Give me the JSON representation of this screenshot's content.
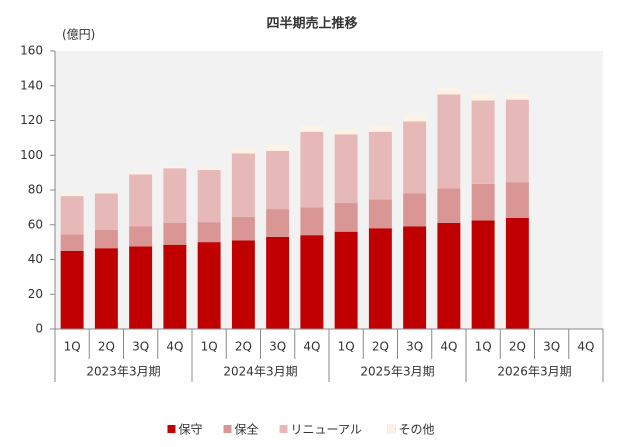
{
  "chart_data": {
    "type": "stacked-bar",
    "title": "四半期売上推移",
    "y_unit": "(億円)",
    "categories": [
      "1Q",
      "2Q",
      "3Q",
      "4Q",
      "1Q",
      "2Q",
      "3Q",
      "4Q",
      "1Q",
      "2Q",
      "3Q",
      "4Q",
      "1Q",
      "2Q",
      "3Q",
      "4Q"
    ],
    "groups": [
      "2023年3月期",
      "2024年3月期",
      "2025年3月期",
      "2026年3月期"
    ],
    "series": [
      {
        "name": "保守",
        "color": "#c00000",
        "values": [
          45,
          46.5,
          47.5,
          48.5,
          50,
          51,
          53,
          54,
          56,
          58,
          59,
          61,
          62.5,
          64,
          null,
          null
        ]
      },
      {
        "name": "保全",
        "color": "#d99694",
        "values": [
          9.5,
          10.5,
          11.5,
          12.5,
          11.5,
          13.5,
          16,
          16,
          16.5,
          16.5,
          19,
          20,
          21,
          20.5,
          null,
          null
        ]
      },
      {
        "name": "リニューアル",
        "color": "#e6b9b8",
        "values": [
          22,
          21,
          30,
          31.5,
          30,
          36.5,
          33.5,
          43.5,
          39.5,
          39,
          41.5,
          54,
          48,
          47.5,
          null,
          null
        ]
      },
      {
        "name": "その他",
        "color": "#fdf2e4",
        "values": [
          1.5,
          1,
          1.5,
          1,
          1.5,
          3,
          3.5,
          3.5,
          2.5,
          3.5,
          3.5,
          4,
          4,
          3.5,
          null,
          null
        ]
      }
    ],
    "ylim": [
      0,
      160
    ],
    "yticks": [
      0,
      20,
      40,
      60,
      80,
      100,
      120,
      140,
      160
    ],
    "grid": false
  }
}
